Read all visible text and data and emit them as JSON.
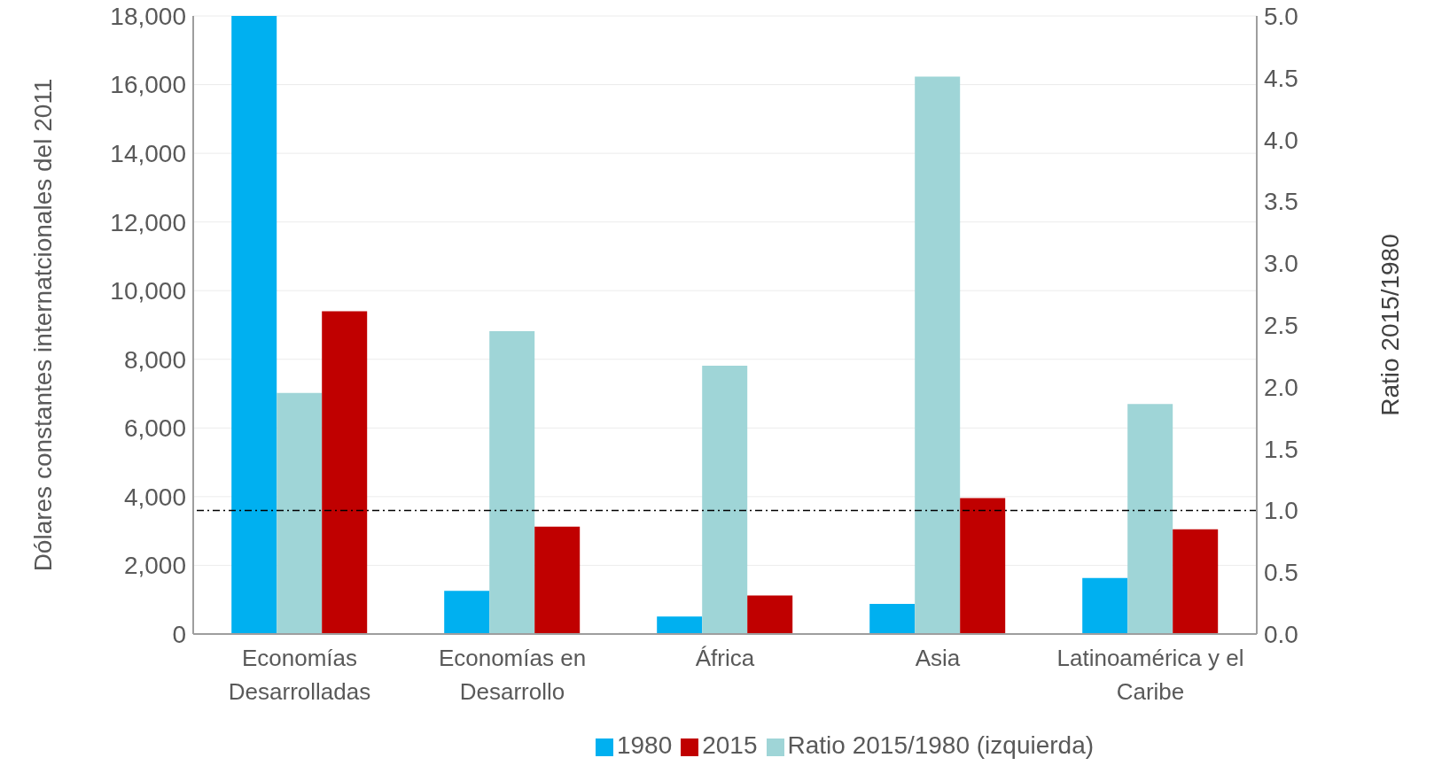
{
  "chart_data": {
    "type": "bar",
    "ylabel": "Dólares constantes internatcionales del 2011",
    "y2label": "Ratio 2015/1980",
    "categories": [
      "Economías Desarrolladas",
      "Economías en Desarrollo",
      "África",
      "Asia",
      "Latinoamérica y el Caribe"
    ],
    "series": [
      {
        "name": "1980",
        "color": "#00b0f0",
        "values": [
          18000,
          1260,
          510,
          880,
          1630
        ]
      },
      {
        "name": "Ratio 2015/1980 (izquierda)",
        "color": "#9fd5d7",
        "axis": "y2",
        "values": [
          1.95,
          2.45,
          2.17,
          4.51,
          1.86
        ]
      },
      {
        "name": "2015",
        "color": "#c00000",
        "values": [
          9400,
          3130,
          1120,
          3960,
          3050
        ]
      }
    ],
    "ylim": [
      0,
      18000
    ],
    "yticks": [
      0,
      {
        "value": 2000,
        "label": "2,000"
      },
      {
        "value": 4000,
        "label": "4,000"
      },
      {
        "value": 6000,
        "label": "6,000"
      },
      {
        "value": 8000,
        "label": "8,000"
      },
      {
        "value": 10000,
        "label": "10,000"
      },
      {
        "value": 12000,
        "label": "12,000"
      },
      {
        "value": 14000,
        "label": "14,000"
      },
      {
        "value": 16000,
        "label": "16,000"
      },
      {
        "value": 18000,
        "label": "18,000"
      }
    ],
    "y2lim": [
      0,
      5
    ],
    "y2ticks": [
      {
        "value": 0,
        "label": "0.0"
      },
      {
        "value": 0.5,
        "label": "0.5"
      },
      {
        "value": 1,
        "label": "1.0"
      },
      {
        "value": 1.5,
        "label": "1.5"
      },
      {
        "value": 2,
        "label": "2.0"
      },
      {
        "value": 2.5,
        "label": "2.5"
      },
      {
        "value": 3,
        "label": "3.0"
      },
      {
        "value": 3.5,
        "label": "3.5"
      },
      {
        "value": 4,
        "label": "4.0"
      },
      {
        "value": 4.5,
        "label": "4.5"
      },
      {
        "value": 5,
        "label": "5.0"
      }
    ],
    "ref_lines": [
      {
        "axis": "y2",
        "value": 1.0,
        "color": "#000000",
        "line_style": "dashdot"
      }
    ],
    "grid": "y",
    "legend": "bottom"
  }
}
